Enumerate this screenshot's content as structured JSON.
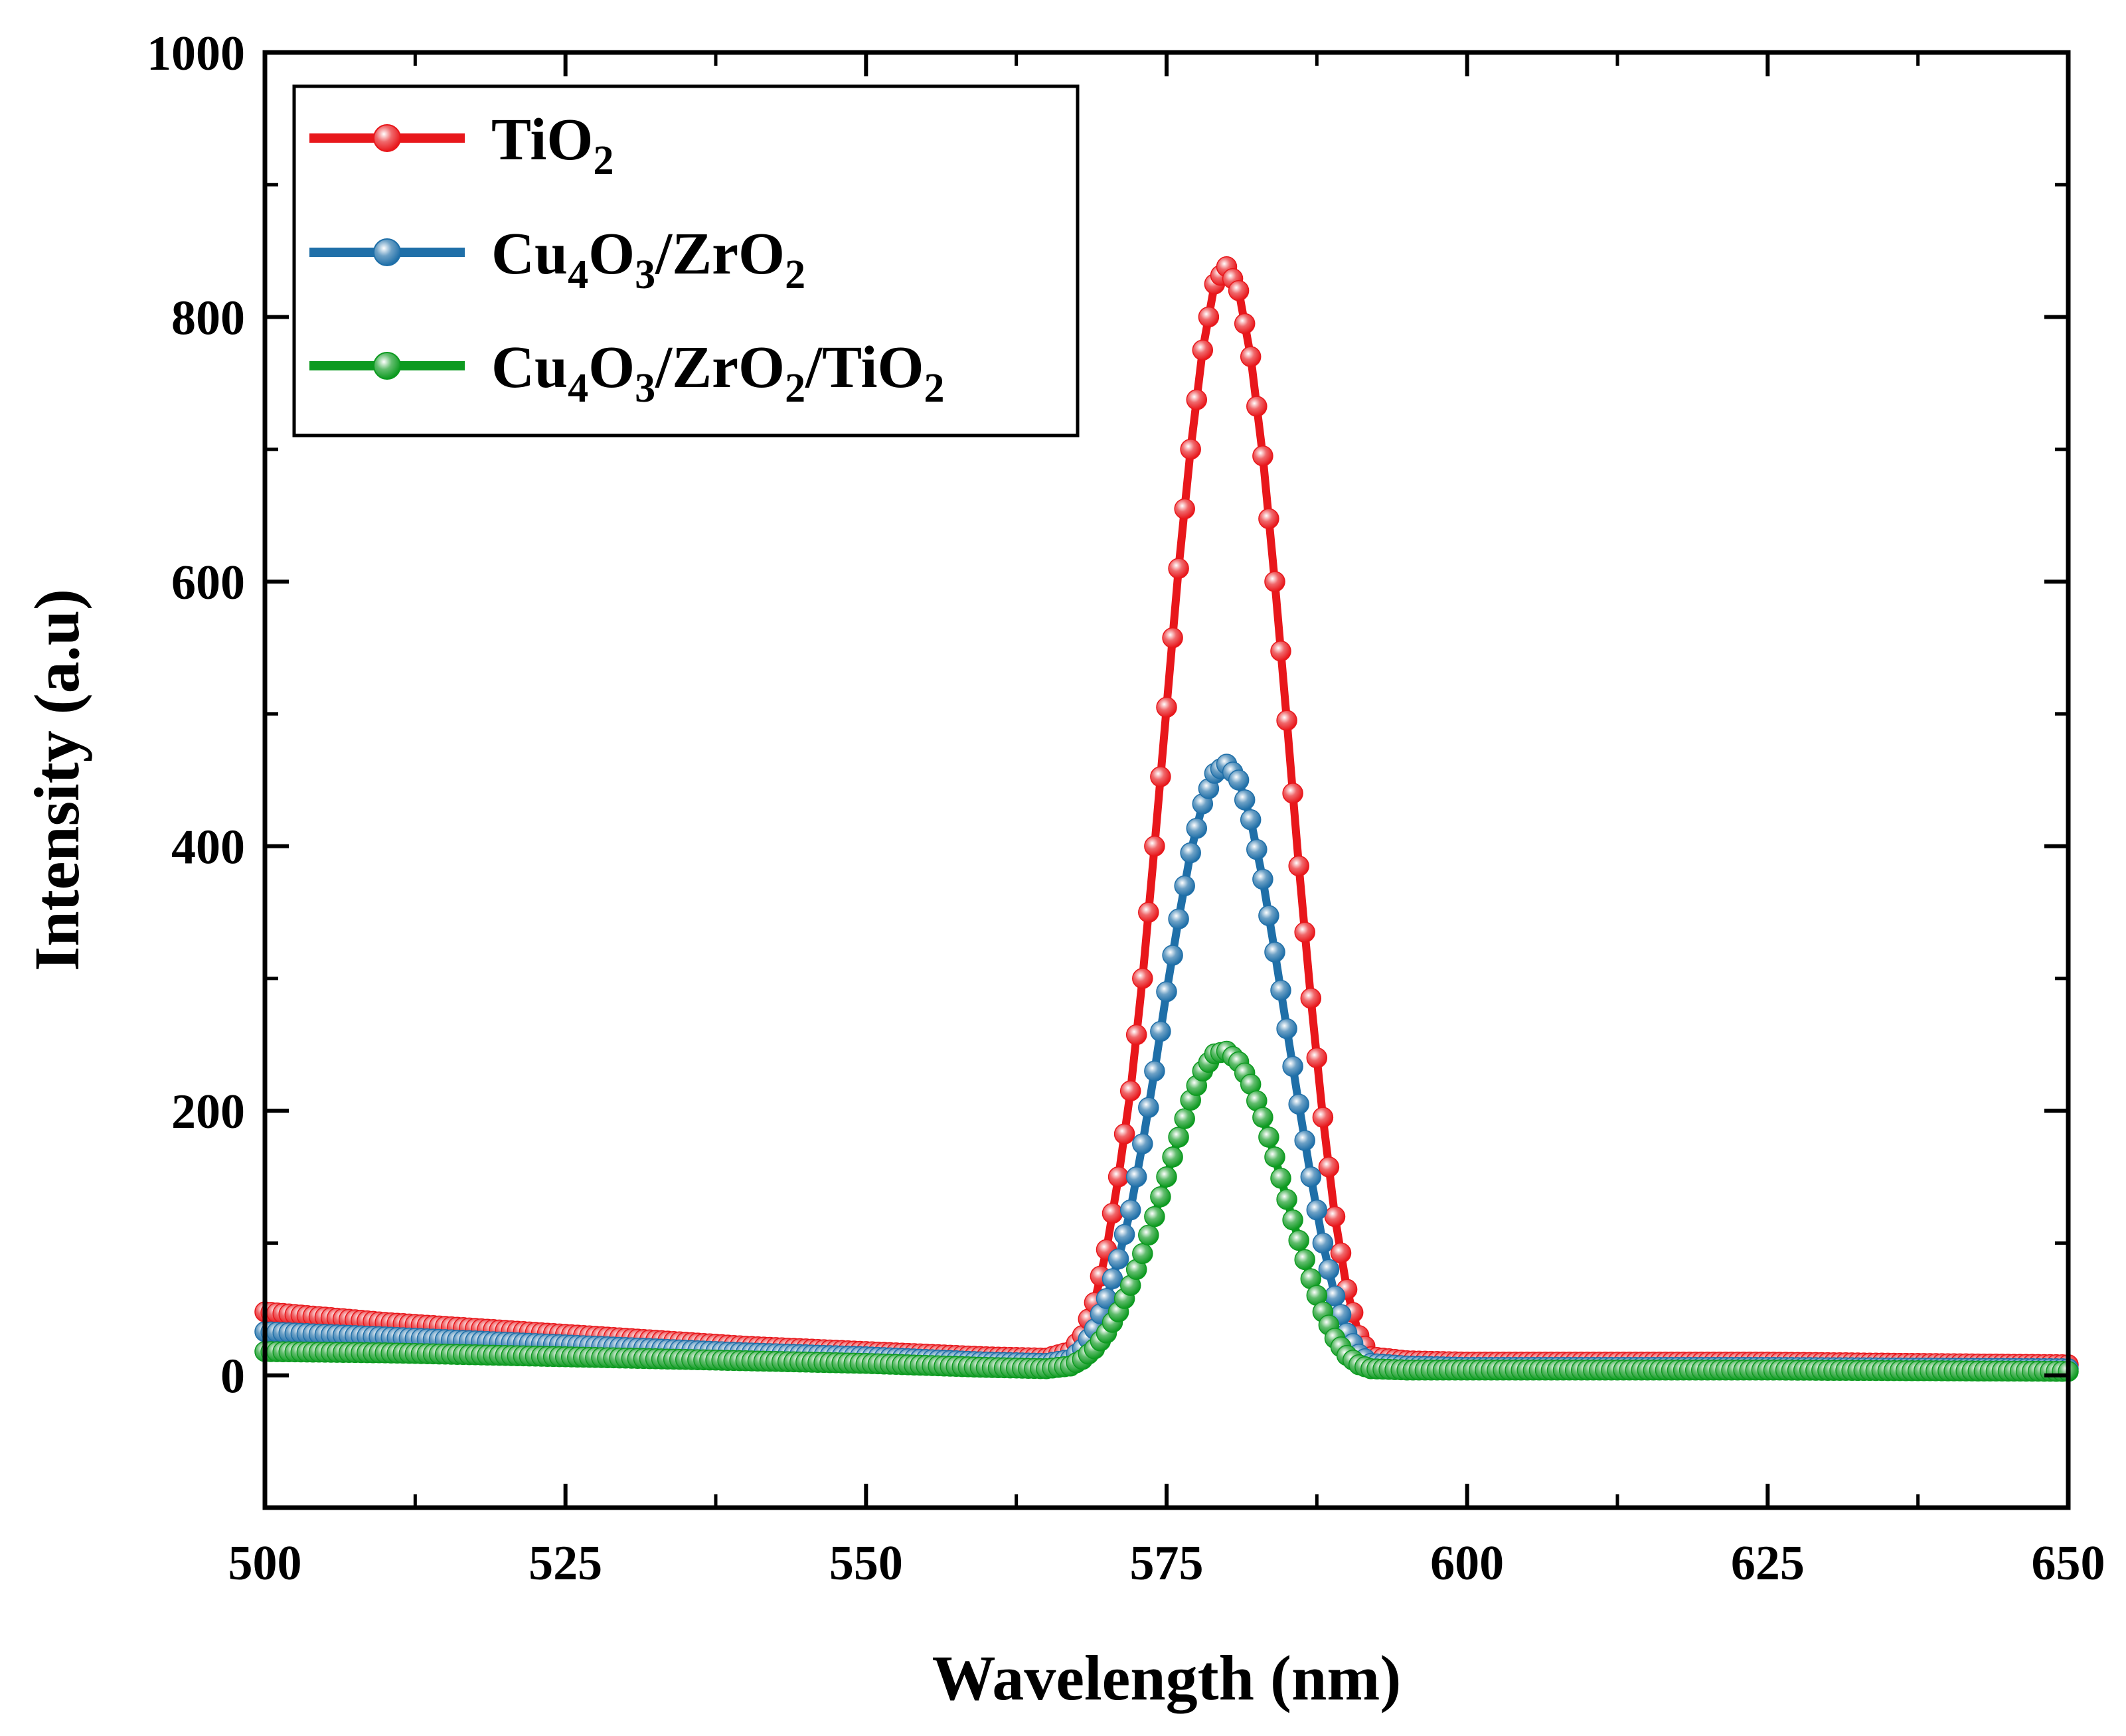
{
  "chart_data": {
    "type": "line",
    "title": "",
    "xlabel": "Wavelength (nm)",
    "ylabel": "Intensity (a.u)",
    "xlim": [
      500,
      650
    ],
    "ylim": [
      -100,
      1000
    ],
    "xticks": [
      500,
      525,
      550,
      575,
      600,
      625,
      650
    ],
    "yticks": [
      0,
      200,
      400,
      600,
      800,
      1000
    ],
    "x_tick_labels": [
      "500",
      "525",
      "550",
      "575",
      "600",
      "625",
      "650"
    ],
    "y_tick_labels": [
      "0",
      "200",
      "400",
      "600",
      "800",
      "1000"
    ],
    "grid": false,
    "legend_position": "top-left",
    "series": [
      {
        "name": "TiO2",
        "label_parts": [
          [
            "Ti",
            "n"
          ],
          [
            "O",
            "n"
          ],
          [
            "2",
            "sub"
          ]
        ],
        "color": "#e8171b",
        "marker": "circle",
        "points": [
          [
            500,
            48
          ],
          [
            510,
            40
          ],
          [
            520,
            34
          ],
          [
            530,
            28
          ],
          [
            540,
            22
          ],
          [
            550,
            18
          ],
          [
            560,
            14
          ],
          [
            565,
            13
          ],
          [
            567,
            18
          ],
          [
            568,
            30
          ],
          [
            569,
            55
          ],
          [
            570,
            95
          ],
          [
            571,
            150
          ],
          [
            572,
            215
          ],
          [
            573,
            300
          ],
          [
            574,
            400
          ],
          [
            575,
            505
          ],
          [
            576,
            610
          ],
          [
            577,
            700
          ],
          [
            578,
            775
          ],
          [
            579,
            825
          ],
          [
            580,
            838
          ],
          [
            581,
            820
          ],
          [
            582,
            770
          ],
          [
            583,
            695
          ],
          [
            584,
            600
          ],
          [
            585,
            495
          ],
          [
            586,
            385
          ],
          [
            587,
            285
          ],
          [
            588,
            195
          ],
          [
            589,
            120
          ],
          [
            590,
            65
          ],
          [
            591,
            30
          ],
          [
            592,
            14
          ],
          [
            595,
            11
          ],
          [
            600,
            10
          ],
          [
            625,
            10
          ],
          [
            650,
            8
          ]
        ]
      },
      {
        "name": "Cu4O3/ZrO2",
        "label_parts": [
          [
            "Cu",
            "n"
          ],
          [
            "4",
            "sub"
          ],
          [
            "O",
            "n"
          ],
          [
            "3",
            "sub"
          ],
          [
            "/ZrO",
            "n"
          ],
          [
            "2",
            "sub"
          ]
        ],
        "color": "#1f6fa8",
        "marker": "circle",
        "points": [
          [
            500,
            33
          ],
          [
            510,
            29
          ],
          [
            520,
            25
          ],
          [
            530,
            21
          ],
          [
            540,
            17
          ],
          [
            550,
            14
          ],
          [
            560,
            10
          ],
          [
            565,
            9
          ],
          [
            567,
            12
          ],
          [
            568,
            20
          ],
          [
            569,
            35
          ],
          [
            570,
            58
          ],
          [
            571,
            88
          ],
          [
            572,
            125
          ],
          [
            573,
            175
          ],
          [
            574,
            230
          ],
          [
            575,
            290
          ],
          [
            576,
            345
          ],
          [
            577,
            395
          ],
          [
            578,
            432
          ],
          [
            579,
            455
          ],
          [
            580,
            462
          ],
          [
            581,
            450
          ],
          [
            582,
            420
          ],
          [
            583,
            375
          ],
          [
            584,
            320
          ],
          [
            585,
            262
          ],
          [
            586,
            205
          ],
          [
            587,
            150
          ],
          [
            588,
            100
          ],
          [
            589,
            60
          ],
          [
            590,
            32
          ],
          [
            591,
            16
          ],
          [
            592,
            9
          ],
          [
            595,
            7
          ],
          [
            600,
            6
          ],
          [
            625,
            6
          ],
          [
            650,
            5
          ]
        ]
      },
      {
        "name": "Cu4O3/ZrO2/TiO2",
        "label_parts": [
          [
            "Cu",
            "n"
          ],
          [
            "4",
            "sub"
          ],
          [
            "O",
            "n"
          ],
          [
            "3",
            "sub"
          ],
          [
            "/ZrO",
            "n"
          ],
          [
            "2",
            "sub"
          ],
          [
            "/TiO",
            "n"
          ],
          [
            "2",
            "sub"
          ]
        ],
        "color": "#0d9a20",
        "marker": "circle",
        "points": [
          [
            500,
            18
          ],
          [
            510,
            17
          ],
          [
            520,
            15
          ],
          [
            530,
            13
          ],
          [
            540,
            11
          ],
          [
            550,
            9
          ],
          [
            560,
            6
          ],
          [
            565,
            5
          ],
          [
            567,
            7
          ],
          [
            568,
            12
          ],
          [
            569,
            20
          ],
          [
            570,
            32
          ],
          [
            571,
            48
          ],
          [
            572,
            68
          ],
          [
            573,
            92
          ],
          [
            574,
            120
          ],
          [
            575,
            150
          ],
          [
            576,
            180
          ],
          [
            577,
            208
          ],
          [
            578,
            230
          ],
          [
            579,
            243
          ],
          [
            580,
            245
          ],
          [
            581,
            237
          ],
          [
            582,
            220
          ],
          [
            583,
            195
          ],
          [
            584,
            165
          ],
          [
            585,
            133
          ],
          [
            586,
            102
          ],
          [
            587,
            73
          ],
          [
            588,
            48
          ],
          [
            589,
            28
          ],
          [
            590,
            15
          ],
          [
            591,
            8
          ],
          [
            592,
            5
          ],
          [
            595,
            4
          ],
          [
            600,
            4
          ],
          [
            625,
            4
          ],
          [
            650,
            3
          ]
        ]
      }
    ]
  }
}
